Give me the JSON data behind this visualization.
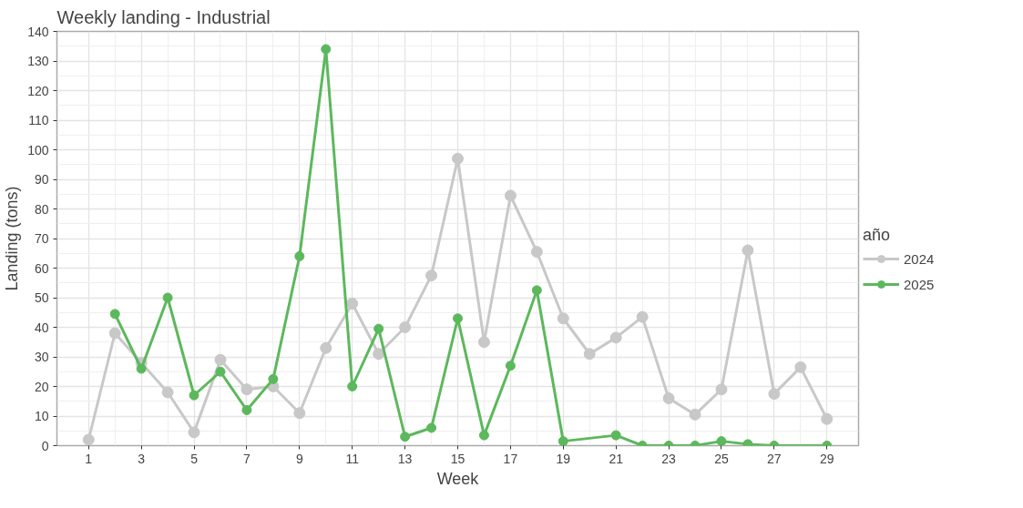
{
  "chart_data": {
    "type": "line",
    "title": "Weekly landing - Industrial",
    "xlabel": "Week",
    "ylabel": "Landing (tons)",
    "legend_title": "año",
    "series": [
      {
        "name": "2024",
        "color": "#c8c8c8",
        "x": [
          1,
          2,
          3,
          4,
          5,
          6,
          7,
          8,
          9,
          10,
          11,
          12,
          13,
          14,
          15,
          16,
          17,
          18,
          19,
          20,
          21,
          22,
          23,
          24,
          25,
          26,
          27,
          28,
          29
        ],
        "values": [
          2,
          38,
          28,
          18,
          4.5,
          29,
          19,
          20,
          11,
          33,
          48,
          31,
          40,
          57.5,
          97,
          35,
          84.5,
          65.5,
          43,
          31,
          36.5,
          43.5,
          16,
          10.5,
          19,
          66,
          17.5,
          26.5,
          9
        ]
      },
      {
        "name": "2025",
        "color": "#5cb85c",
        "x": [
          2,
          3,
          4,
          5,
          6,
          7,
          8,
          9,
          10,
          11,
          12,
          13,
          14,
          15,
          16,
          17,
          18,
          19,
          21,
          22,
          23,
          24,
          25,
          26,
          27,
          29
        ],
        "values": [
          44.5,
          26,
          50,
          17,
          25,
          12,
          22.5,
          64,
          134,
          20,
          39.5,
          3,
          6,
          43,
          3.5,
          27,
          52.5,
          1.5,
          3.5,
          0,
          0,
          0,
          1.5,
          0.5,
          0,
          0
        ]
      }
    ],
    "xlim": [
      -0.2,
      30.2
    ],
    "xticks": [
      1,
      3,
      5,
      7,
      9,
      11,
      13,
      15,
      17,
      19,
      21,
      23,
      25,
      27,
      29
    ],
    "ylim": [
      0,
      140
    ],
    "yticks": [
      0,
      10,
      20,
      30,
      40,
      50,
      60,
      70,
      80,
      90,
      100,
      110,
      120,
      130,
      140
    ],
    "grid": true,
    "legend": "right",
    "marker": "circle",
    "line_style": "solid"
  }
}
